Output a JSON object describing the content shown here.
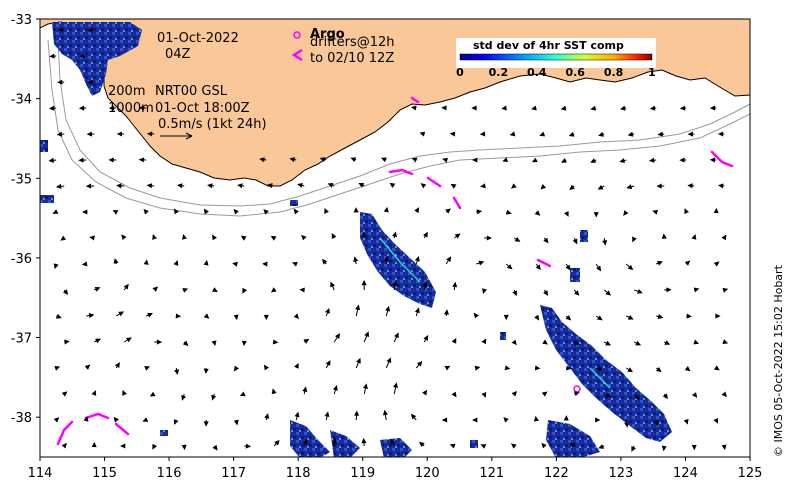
{
  "map": {
    "date": "01-Oct-2022",
    "time": "04Z",
    "argo_label": "Argo",
    "drifters_label": "drifters@12h",
    "drifters_range": "to 02/10 12Z",
    "iso_200": "200m",
    "product": "NRT00 GSL",
    "iso_1000": "1000m",
    "analysis_time": "01-Oct 18:00Z",
    "vector_scale": "0.5m/s (1kt 24h)",
    "credit": "© IMOS 05-Oct-2022 15:02 Hobart"
  },
  "colorbar": {
    "title": "std dev of 4hr SST comp",
    "ticks": [
      "0",
      "0.2",
      "0.4",
      "0.6",
      "0.8",
      "1"
    ]
  },
  "axes": {
    "x_ticks": [
      "114",
      "115",
      "116",
      "117",
      "118",
      "119",
      "120",
      "121",
      "122",
      "123",
      "124",
      "125"
    ],
    "y_ticks": [
      "-33",
      "-34",
      "-35",
      "-36",
      "-37",
      "-38"
    ],
    "x_range": [
      114,
      125
    ],
    "y_range": [
      -38.5,
      -33
    ]
  },
  "colors": {
    "land": "#fac898",
    "sst_low": "#1a2a9c",
    "sst_mid": "#00a0e0",
    "argo": "#ff00ff",
    "drifter": "#ff00ff",
    "isobath": "#9a9a9a"
  }
}
